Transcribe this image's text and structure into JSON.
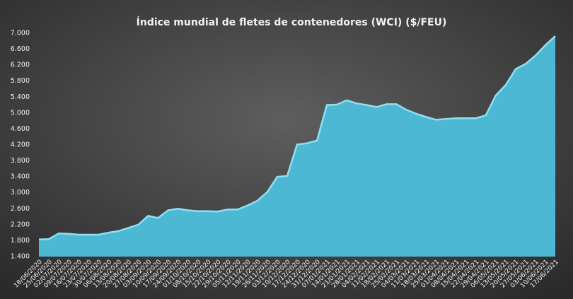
{
  "chart_data": {
    "type": "area",
    "title": "Índice mundial de fletes de contenedores (WCI) ($/FEU)",
    "categories": [
      "18/06/2020",
      "25/06/2020",
      "02/07/2020",
      "09/07/2020",
      "16/07/2020",
      "23/07/2020",
      "30/07/2020",
      "06/08/2020",
      "13/08/2020",
      "20/08/2020",
      "27/08/2020",
      "03/09/2020",
      "10/09/2020",
      "17/09/2020",
      "24/09/2020",
      "01/10/2020",
      "08/10/2020",
      "15/10/2020",
      "22/10/2020",
      "29/10/2020",
      "05/11/2020",
      "12/11/2020",
      "19/11/2020",
      "26/11/2020",
      "03/12/2020",
      "10/12/2020",
      "17/12/2020",
      "24/12/2020",
      "31/12/2020",
      "07/01/2021",
      "14/01/2021",
      "21/01/2021",
      "28/01/2021",
      "04/02/2021",
      "11/02/2021",
      "18/02/2021",
      "25/02/2021",
      "04/03/2021",
      "11/03/2021",
      "18/03/2021",
      "25/03/2021",
      "01/04/2021",
      "08/04/2021",
      "15/04/2021",
      "22/04/2021",
      "29/04/2021",
      "06/05/2021",
      "13/05/2021",
      "20/05/2021",
      "27/05/2021",
      "03/06/2021",
      "10/06/2021",
      "17/06/2021"
    ],
    "values": [
      1830,
      1840,
      1980,
      1970,
      1950,
      1950,
      1950,
      2000,
      2040,
      2120,
      2200,
      2420,
      2370,
      2560,
      2600,
      2560,
      2540,
      2540,
      2530,
      2580,
      2580,
      2680,
      2800,
      3020,
      3400,
      3420,
      4210,
      4240,
      4310,
      5200,
      5210,
      5320,
      5240,
      5200,
      5150,
      5220,
      5220,
      5080,
      4980,
      4900,
      4830,
      4850,
      4870,
      4870,
      4870,
      4940,
      5440,
      5700,
      6100,
      6230,
      6440,
      6700,
      6930
    ],
    "color": "#4db8d4",
    "ylim": [
      1400,
      7000
    ],
    "yticks": [
      {
        "value": 1400,
        "label": "1.400"
      },
      {
        "value": 1800,
        "label": "1.800"
      },
      {
        "value": 2200,
        "label": "2.200"
      },
      {
        "value": 2600,
        "label": "2.600"
      },
      {
        "value": 3000,
        "label": "3.000"
      },
      {
        "value": 3400,
        "label": "3.400"
      },
      {
        "value": 3800,
        "label": "3.800"
      },
      {
        "value": 4200,
        "label": "4.200"
      },
      {
        "value": 4600,
        "label": "4.600"
      },
      {
        "value": 5000,
        "label": "5.000"
      },
      {
        "value": 5400,
        "label": "5.400"
      },
      {
        "value": 5800,
        "label": "5.800"
      },
      {
        "value": 6200,
        "label": "6.200"
      },
      {
        "value": 6600,
        "label": "6.600"
      },
      {
        "value": 7000,
        "label": "7.000"
      }
    ],
    "grid": false
  }
}
